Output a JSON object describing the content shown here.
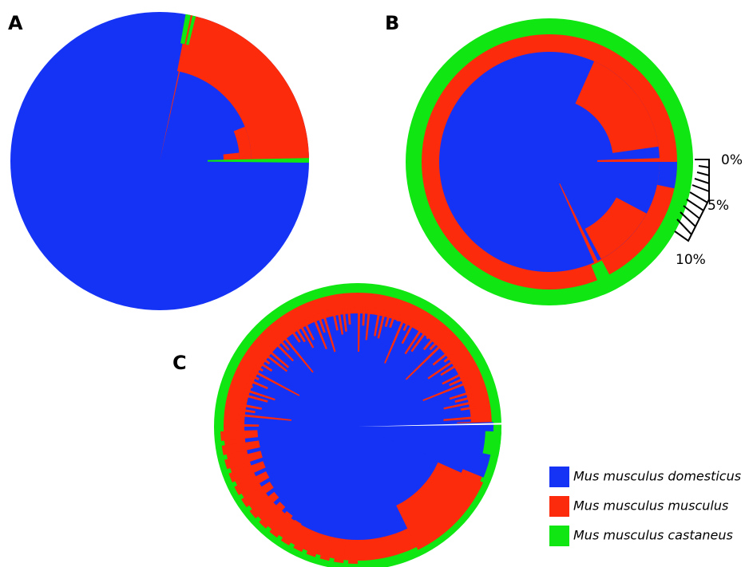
{
  "panels": [
    {
      "label": "A"
    },
    {
      "label": "B"
    },
    {
      "label": "C"
    }
  ],
  "scale": {
    "labels": [
      "0%",
      "5%",
      "10%"
    ]
  },
  "legend": [
    {
      "name": "Mus musculus domesticus",
      "color": "#1533f5"
    },
    {
      "name": "Mus musculus musculus",
      "color": "#fb2b0c"
    },
    {
      "name": "Mus musculus castaneus",
      "color": "#10e611"
    }
  ]
}
